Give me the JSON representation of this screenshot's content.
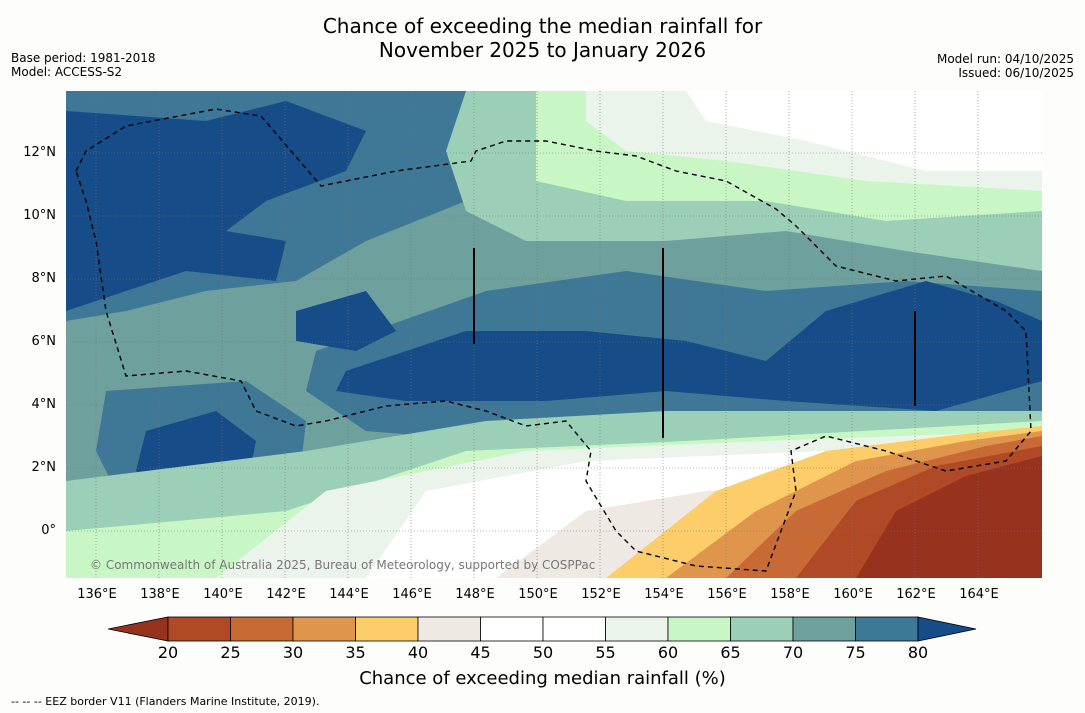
{
  "title_line1": "Chance of exceeding the median rainfall for",
  "title_line2": "November 2025 to January 2026",
  "meta": {
    "base_period": "Base period: 1981-2018",
    "model": "Model: ACCESS-S2",
    "model_run": "Model run: 04/10/2025",
    "issued": "Issued: 06/10/2025"
  },
  "lat_labels": [
    "12°N",
    "10°N",
    "8°N",
    "6°N",
    "4°N",
    "2°N",
    "0°"
  ],
  "lon_labels": [
    "136°E",
    "138°E",
    "140°E",
    "142°E",
    "144°E",
    "146°E",
    "148°E",
    "150°E",
    "152°E",
    "154°E",
    "156°E",
    "158°E",
    "160°E",
    "162°E",
    "164°E"
  ],
  "colorbar": {
    "ticks": [
      "20",
      "25",
      "30",
      "35",
      "40",
      "45",
      "50",
      "55",
      "60",
      "65",
      "70",
      "75",
      "80"
    ],
    "colors": [
      "#b04a26",
      "#c86a35",
      "#e0954c",
      "#fdcd69",
      "#efe9e4",
      "#ffffff",
      "#ffffff",
      "#eaf4ea",
      "#c8f7c5",
      "#9ccfb7",
      "#6ea19e",
      "#3f7796"
    ],
    "low_color": "#97321f",
    "high_color": "#164c88",
    "title": "Chance of exceeding median rainfall (%)"
  },
  "copyright": "© Commonwealth of Australia 2025, Bureau of Meteorology, supported by COSPPac",
  "footnote": "--  --  -- EEZ border V11 (Flanders Marine Institute, 2019)."
}
